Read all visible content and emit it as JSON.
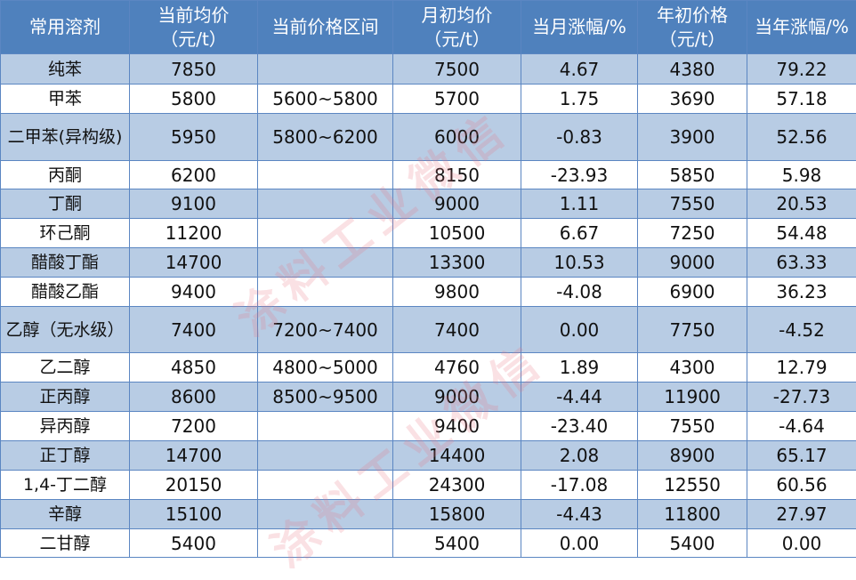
{
  "headers": [
    "常用溶剂",
    "当前均价（元/t）",
    "当前价格区间",
    "月初均价（元/t）",
    "当月涨幅/%",
    "年初价格（元/t）",
    "当年涨幅/%"
  ],
  "rows": [
    [
      "纯苯",
      "7850",
      "",
      "7500",
      "4.67",
      "4380",
      "79.22"
    ],
    [
      "甲苯",
      "5800",
      "5600~5800",
      "5700",
      "1.75",
      "3690",
      "57.18"
    ],
    [
      "二甲苯(异构级)",
      "5950",
      "5800~6200",
      "6000",
      "-0.83",
      "3900",
      "52.56"
    ],
    [
      "丙酮",
      "6200",
      "",
      "8150",
      "-23.93",
      "5850",
      "5.98"
    ],
    [
      "丁酮",
      "9100",
      "",
      "9000",
      "1.11",
      "7550",
      "20.53"
    ],
    [
      "环己酮",
      "11200",
      "",
      "10500",
      "6.67",
      "7250",
      "54.48"
    ],
    [
      "醋酸丁酯",
      "14700",
      "",
      "13300",
      "10.53",
      "9000",
      "63.33"
    ],
    [
      "醋酸乙酯",
      "9400",
      "",
      "9800",
      "-4.08",
      "6900",
      "36.23"
    ],
    [
      "乙醇（无水级）",
      "7400",
      "7200~7400",
      "7400",
      "0.00",
      "7750",
      "-4.52"
    ],
    [
      "乙二醇",
      "4850",
      "4800~5000",
      "4760",
      "1.89",
      "4300",
      "12.79"
    ],
    [
      "正丙醇",
      "8600",
      "8500~9500",
      "9000",
      "-4.44",
      "11900",
      "-27.73"
    ],
    [
      "异丙醇",
      "7200",
      "",
      "9400",
      "-23.40",
      "7550",
      "-4.64"
    ],
    [
      "正丁醇",
      "14700",
      "",
      "14400",
      "2.08",
      "8900",
      "65.17"
    ],
    [
      "1,4-丁二醇",
      "20150",
      "",
      "24300",
      "-17.08",
      "12550",
      "60.56"
    ],
    [
      "辛醇",
      "15100",
      "",
      "15800",
      "-4.43",
      "11800",
      "27.97"
    ],
    [
      "二甘醇",
      "5400",
      "",
      "5400",
      "0.00",
      "5400",
      "0.00"
    ]
  ],
  "watermark": "涂料工业微信",
  "colors": {
    "header": "#4f81bd",
    "stripe": "#b8cce4"
  }
}
